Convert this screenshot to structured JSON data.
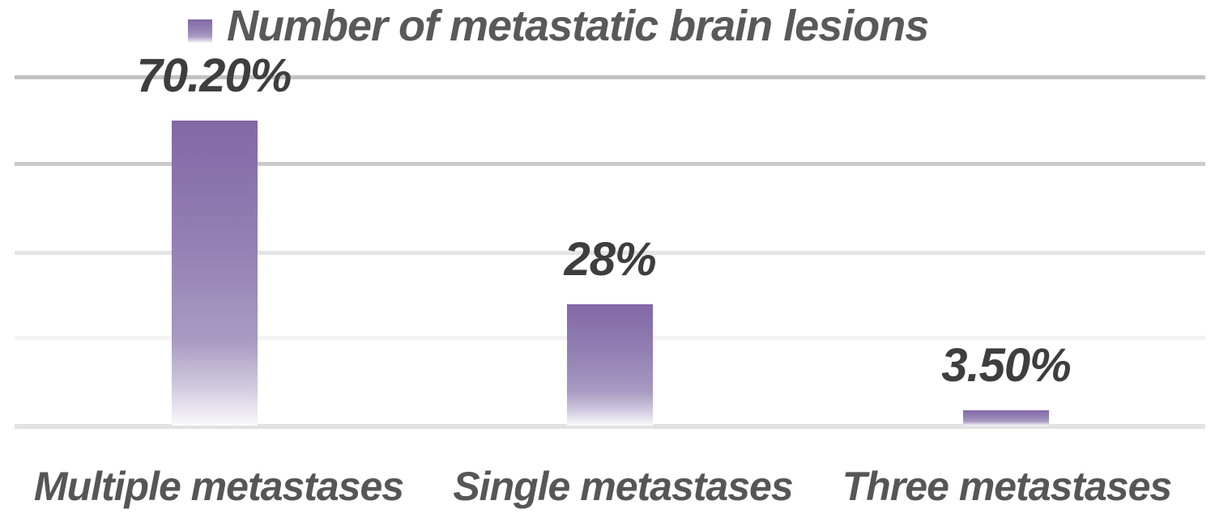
{
  "chart_data": {
    "type": "bar",
    "title": "",
    "legend_label": "Number of metastatic brain lesions",
    "legend_position": "top",
    "categories": [
      "Multiple metastases",
      "Single metastases",
      "Three metastases"
    ],
    "values": [
      70.2,
      28,
      3.5
    ],
    "value_labels": [
      "70.20%",
      "28%",
      "3.50%"
    ],
    "ylabel": "",
    "xlabel": "",
    "ylim": [
      0,
      80
    ],
    "gridline_interval": 20,
    "grid": true,
    "bar_gradient": [
      "#8268A7 0%",
      "#9380B3 40%",
      "#A89AC2 72%",
      "#D2CCE0 88%",
      "#FBFAFC 100%"
    ],
    "gridline_colors": [
      "#C2C2C2",
      "#CBCBCB",
      "#E4E4E4",
      "#F3F3F3"
    ],
    "axis_color": "#E2E2E2",
    "data_label_color": "#3E3E3E",
    "category_label_color": "#565656",
    "legend_text_color": "#595959"
  }
}
